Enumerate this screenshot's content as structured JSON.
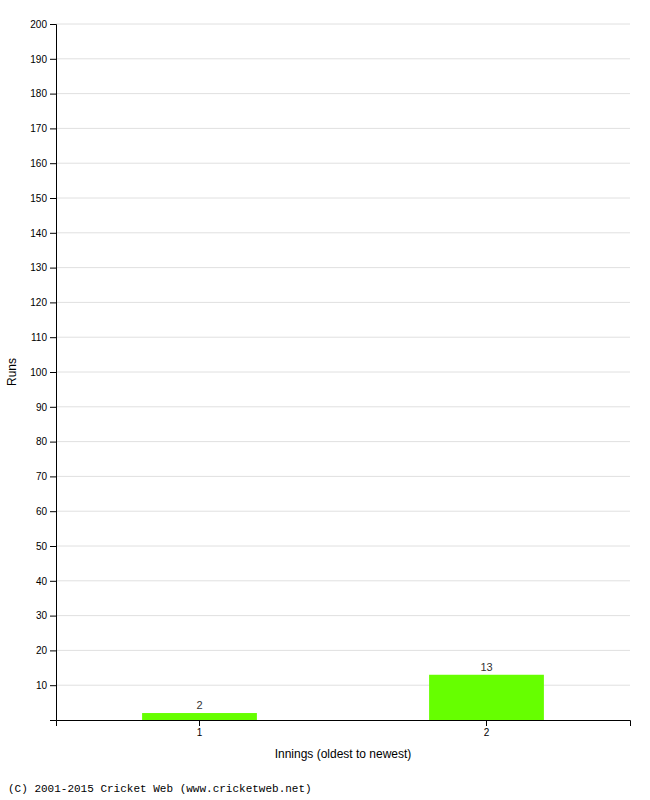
{
  "chart_data": {
    "type": "bar",
    "categories": [
      1,
      2
    ],
    "values": [
      2,
      13
    ],
    "color": "#66ff00",
    "xlabel": "Innings (oldest to newest)",
    "ylabel": "Runs",
    "ylim": [
      0,
      200
    ],
    "yticks": [
      10,
      20,
      30,
      40,
      50,
      60,
      70,
      80,
      90,
      100,
      110,
      120,
      130,
      140,
      150,
      160,
      170,
      180,
      190,
      200
    ],
    "grid": true,
    "data_labels": true,
    "footer": "(C) 2001-2015 Cricket Web (www.cricketweb.net)"
  }
}
